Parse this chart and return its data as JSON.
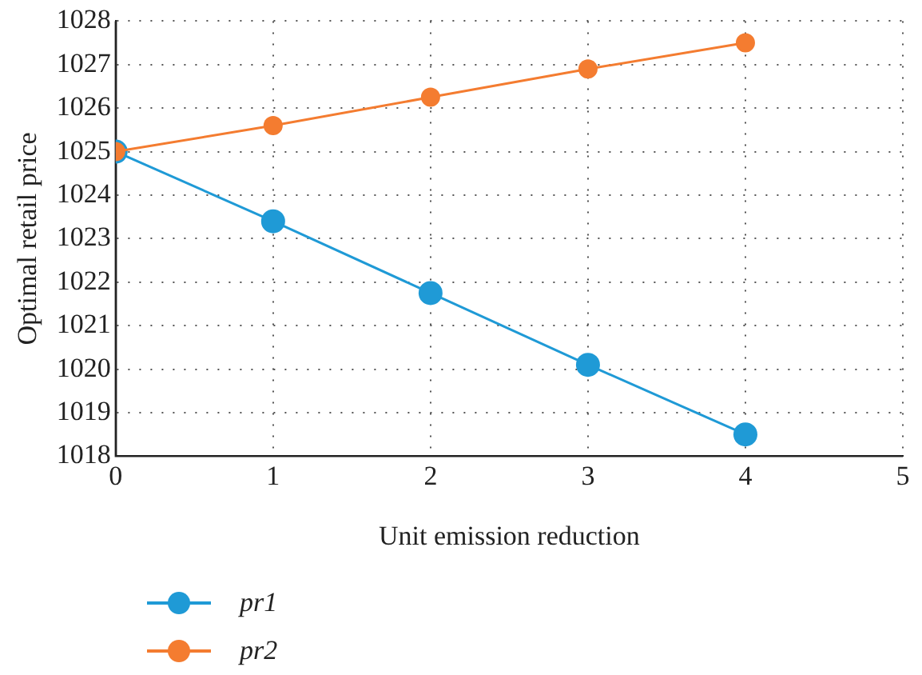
{
  "chart_data": {
    "type": "line",
    "xlabel": "Unit emission reduction",
    "ylabel": "Optimal retail price",
    "x": [
      0,
      1,
      2,
      3,
      4
    ],
    "series": [
      {
        "name": "pr1",
        "color": "#1f9ad6",
        "values": [
          1025,
          1023.4,
          1021.75,
          1020.1,
          1018.5
        ]
      },
      {
        "name": "pr2",
        "color": "#f47c30",
        "values": [
          1025,
          1025.6,
          1026.25,
          1026.9,
          1027.5
        ]
      }
    ],
    "xlim": [
      0,
      5
    ],
    "xticks": [
      0,
      1,
      2,
      3,
      4,
      5
    ],
    "ylim": [
      1018,
      1028
    ],
    "yticks": [
      1018,
      1019,
      1020,
      1021,
      1022,
      1023,
      1024,
      1025,
      1026,
      1027,
      1028
    ],
    "grid": true,
    "legend": "bottom left",
    "marker": "circle",
    "line_style": "solid"
  }
}
